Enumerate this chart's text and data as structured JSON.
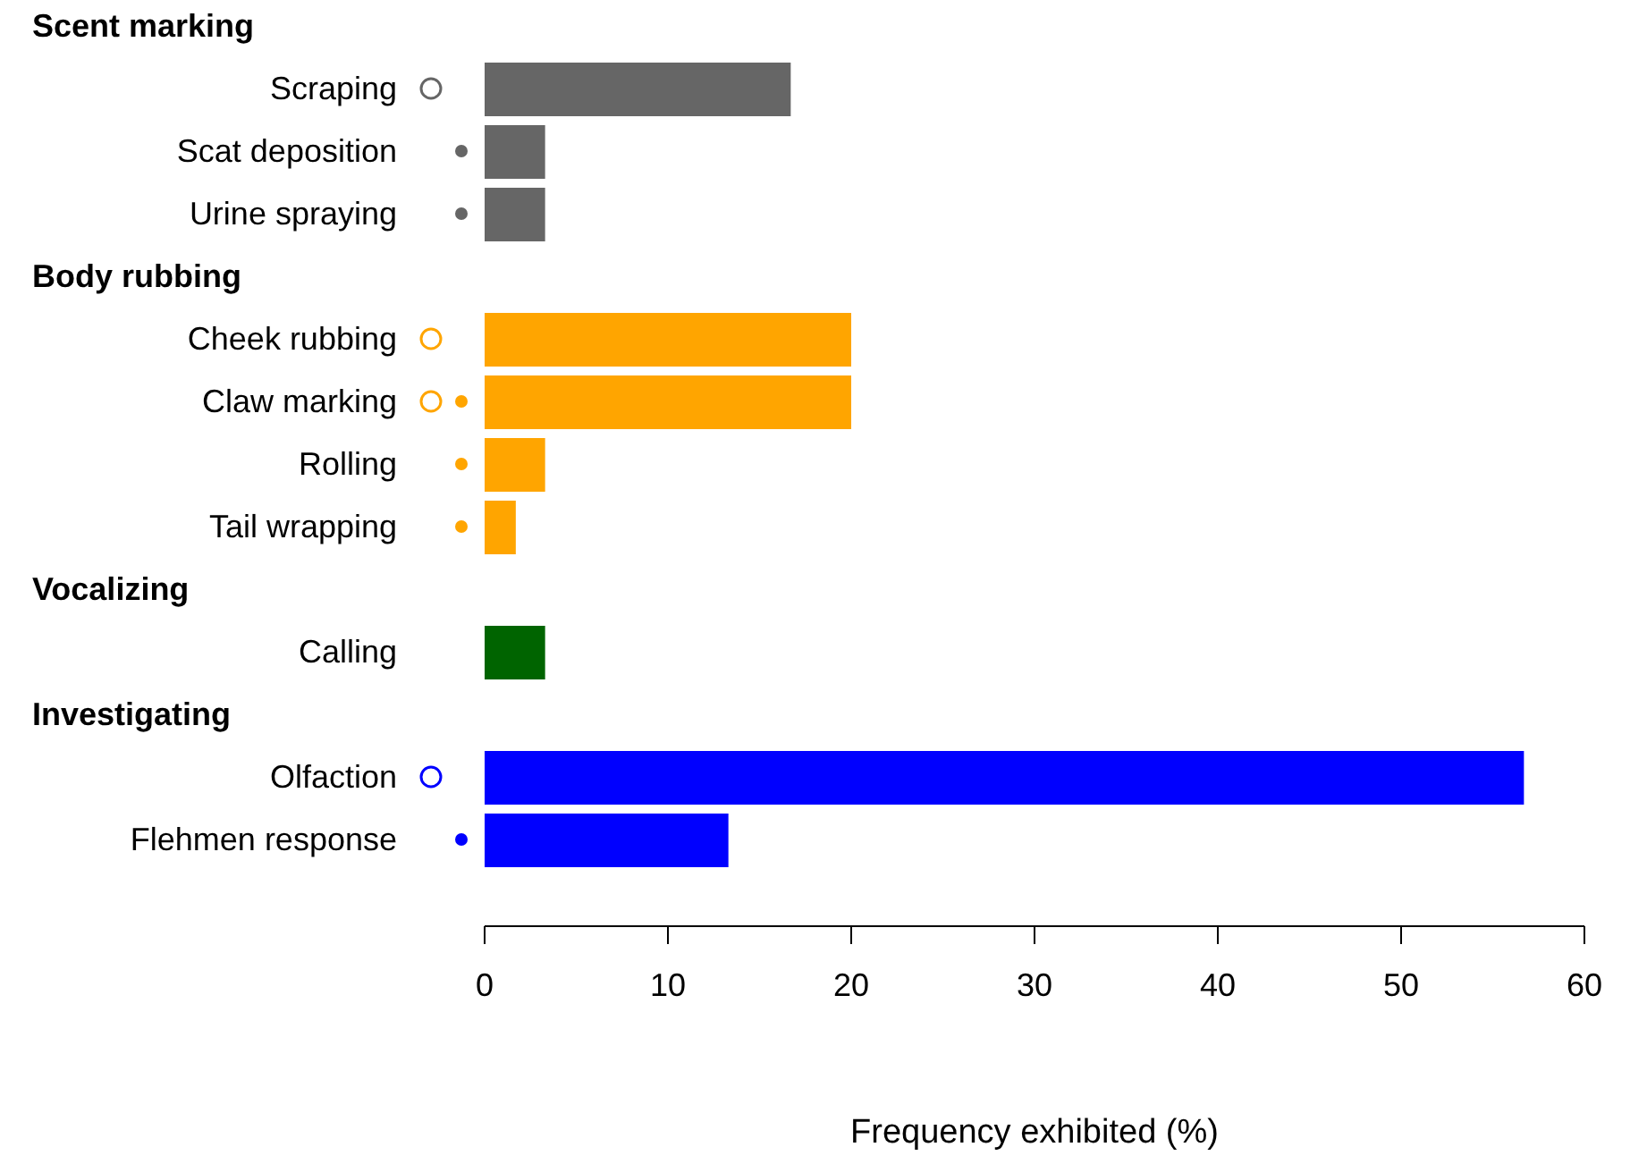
{
  "chart_data": {
    "type": "bar",
    "orientation": "horizontal",
    "xlabel": "Frequency exhibited (%)",
    "annotations": [
      "Scent marking",
      "Body rubbing",
      "Vocalizing",
      "Investigating"
    ],
    "categories": [
      null,
      "Scraping",
      "Scat deposition",
      "Urine spraying",
      null,
      "Cheek rubbing",
      "Claw marking",
      "Rolling",
      "Tail wrapping",
      null,
      "Calling",
      null,
      "Olfaction",
      "Flehmen response"
    ],
    "values": [
      null,
      16.7,
      3.3,
      3.3,
      null,
      20,
      20,
      3.3,
      1.7,
      null,
      3.3,
      null,
      56.7,
      13.3
    ],
    "colors": [
      "#666666",
      "#666666",
      "#666666",
      "#666666",
      "#ffa500",
      "#ffa500",
      "#ffa500",
      "#ffa500",
      "#ffa500",
      "#006400",
      "#006400",
      "#0000ff",
      "#0000ff",
      "#0000ff"
    ],
    "xlim": [
      0,
      60
    ],
    "xticks": [
      0,
      10,
      20,
      30,
      40,
      50,
      60
    ]
  }
}
